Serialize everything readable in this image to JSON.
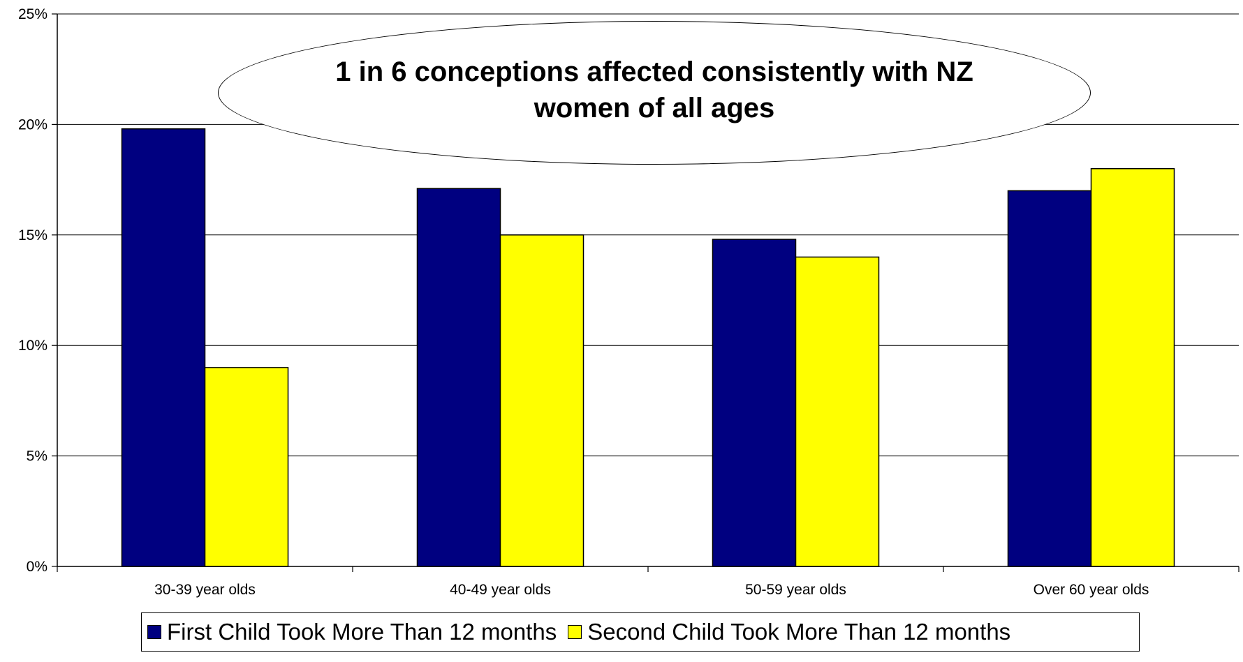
{
  "chart_data": {
    "type": "bar",
    "categories": [
      "30-39 year olds",
      "40-49 year olds",
      "50-59 year olds",
      "Over 60 year olds"
    ],
    "series": [
      {
        "name": "First Child Took More Than 12 months",
        "color": "#000080",
        "values": [
          19.8,
          17.1,
          14.8,
          17.0
        ]
      },
      {
        "name": "Second Child Took More Than 12 months",
        "color": "#FFFF00",
        "values": [
          9.0,
          15.0,
          14.0,
          18.0
        ]
      }
    ],
    "ylim": [
      0,
      25
    ],
    "yticks": [
      0,
      5,
      10,
      15,
      20,
      25
    ],
    "ytick_labels": [
      "0%",
      "5%",
      "10%",
      "15%",
      "20%",
      "25%"
    ],
    "grid": true,
    "legend_position": "bottom",
    "annotation": "1 in 6 conceptions affected consistently with NZ women of all ages",
    "title": "",
    "xlabel": "",
    "ylabel": ""
  }
}
